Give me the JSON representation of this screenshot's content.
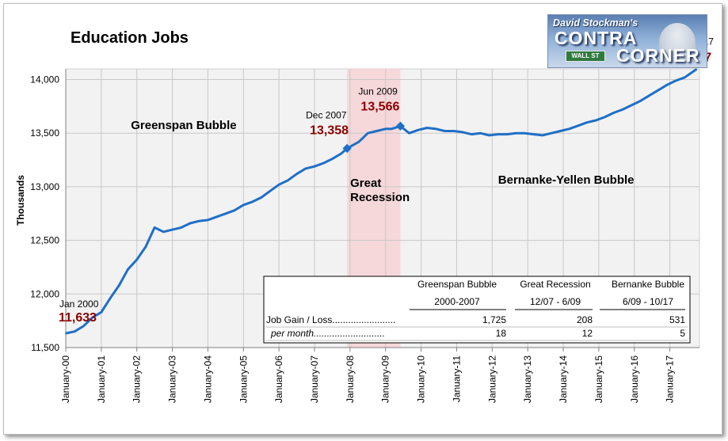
{
  "chart_data": {
    "type": "line",
    "title": "Education Jobs",
    "ylabel": "Thousands",
    "xlabel": "",
    "ylim": [
      11500,
      14100
    ],
    "yticks": [
      11500,
      12000,
      12500,
      13000,
      13500,
      14000
    ],
    "ytick_labels": [
      "11,500",
      "12,000",
      "12,500",
      "13,000",
      "13,500",
      "14,000"
    ],
    "xlim": [
      "2000-01",
      "2017-11"
    ],
    "xtick_labels": [
      "January-00",
      "January-01",
      "January-02",
      "January-03",
      "January-04",
      "January-05",
      "January-06",
      "January-07",
      "January-08",
      "January-09",
      "January-10",
      "January-11",
      "January-12",
      "January-13",
      "January-14",
      "January-15",
      "January-16",
      "January-17"
    ],
    "grid": true,
    "series_color": "#1f6fc6",
    "recession_band": {
      "start": "2007-12",
      "end": "2009-06",
      "label_line1": "Great",
      "label_line2": "Recession",
      "color": "#f7d4d6"
    },
    "series": [
      {
        "x": [
          "2000-01",
          "2000-04",
          "2000-07",
          "2000-10",
          "2001-01",
          "2001-04",
          "2001-07",
          "2001-10",
          "2002-01",
          "2002-04",
          "2002-07",
          "2002-10",
          "2003-01",
          "2003-04",
          "2003-07",
          "2003-10",
          "2004-01",
          "2004-04",
          "2004-07",
          "2004-10",
          "2005-01",
          "2005-04",
          "2005-07",
          "2005-10",
          "2006-01",
          "2006-04",
          "2006-07",
          "2006-10",
          "2007-01",
          "2007-04",
          "2007-07",
          "2007-10",
          "2007-12",
          "2008-04",
          "2008-07",
          "2008-10",
          "2009-01",
          "2009-03",
          "2009-06",
          "2009-09",
          "2009-12",
          "2010-03",
          "2010-06",
          "2010-09",
          "2010-12",
          "2011-03",
          "2011-06",
          "2011-09",
          "2011-12",
          "2012-03",
          "2012-06",
          "2012-09",
          "2012-12",
          "2013-03",
          "2013-06",
          "2013-09",
          "2013-12",
          "2014-03",
          "2014-06",
          "2014-09",
          "2014-12",
          "2015-03",
          "2015-06",
          "2015-09",
          "2015-12",
          "2016-03",
          "2016-06",
          "2016-09",
          "2016-12",
          "2017-03",
          "2017-06",
          "2017-10"
        ],
        "values": [
          11633,
          11650,
          11700,
          11780,
          11830,
          11960,
          12080,
          12230,
          12320,
          12440,
          12620,
          12580,
          12600,
          12620,
          12660,
          12680,
          12690,
          12720,
          12750,
          12780,
          12830,
          12860,
          12900,
          12960,
          13020,
          13060,
          13120,
          13170,
          13190,
          13220,
          13260,
          13310,
          13358,
          13420,
          13500,
          13520,
          13540,
          13540,
          13566,
          13500,
          13530,
          13550,
          13540,
          13520,
          13520,
          13510,
          13490,
          13500,
          13480,
          13490,
          13490,
          13500,
          13500,
          13490,
          13480,
          13500,
          13520,
          13540,
          13570,
          13600,
          13620,
          13650,
          13690,
          13720,
          13760,
          13800,
          13850,
          13900,
          13950,
          13990,
          14020,
          14097
        ]
      }
    ],
    "point_labels": [
      {
        "date_text": "Jan 2000",
        "value_text": "11,633",
        "x": "2000-01",
        "y": 11633,
        "marker": false
      },
      {
        "date_text": "Dec 2007",
        "value_text": "13,358",
        "x": "2007-12",
        "y": 13358,
        "marker": true
      },
      {
        "date_text": "Jun 2009",
        "value_text": "13,566",
        "x": "2009-06",
        "y": 13566,
        "marker": true
      },
      {
        "date_text": "Oct 2017",
        "value_text": "14,097",
        "x": "2017-10",
        "y": 14097,
        "marker": false
      }
    ],
    "annotations": {
      "greenspan": "Greenspan Bubble",
      "bernanke": "Bernanke-Yellen Bubble"
    },
    "table": {
      "columns": [
        "Greenspan Bubble",
        "Great Recession",
        "Bernanke Bubble"
      ],
      "periods": [
        "2000-2007",
        "12/07 - 6/09",
        "6/09 - 10/17"
      ],
      "rows": [
        {
          "label": "Job Gain / Loss........................",
          "values": [
            "1,725",
            "208",
            "531"
          ]
        },
        {
          "label": "per month...........................",
          "values": [
            "18",
            "12",
            "5"
          ]
        }
      ]
    }
  },
  "logo": {
    "line1": "David Stockman's",
    "line2": "CONTRA",
    "line3": "CORNER",
    "sign": "WALL ST"
  }
}
